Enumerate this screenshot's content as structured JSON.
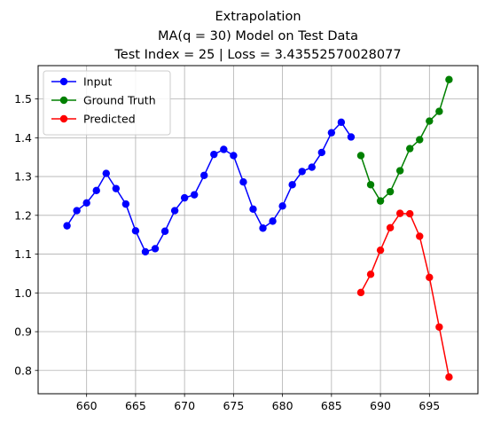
{
  "chart_data": {
    "type": "line",
    "title_lines": [
      "Extrapolation",
      "MA(q = 30) Model on Test Data",
      "Test Index = 25 | Loss = 3.43552570028077"
    ],
    "xlabel": "",
    "ylabel": "",
    "xlim": [
      655.05,
      699.95
    ],
    "ylim": [
      0.74,
      1.586
    ],
    "xticks": [
      660,
      665,
      670,
      675,
      680,
      685,
      690,
      695
    ],
    "yticks": [
      0.8,
      0.9,
      1.0,
      1.1,
      1.2,
      1.3,
      1.4,
      1.5
    ],
    "grid": true,
    "legend_position": "top-left",
    "series": [
      {
        "name": "Input",
        "color": "#0000ff",
        "x": [
          658,
          659,
          660,
          661,
          662,
          663,
          664,
          665,
          666,
          667,
          668,
          669,
          670,
          671,
          672,
          673,
          674,
          675,
          676,
          677,
          678,
          679,
          680,
          681,
          682,
          683,
          684,
          685,
          686,
          687
        ],
        "y": [
          1.173,
          1.212,
          1.232,
          1.264,
          1.308,
          1.269,
          1.229,
          1.16,
          1.106,
          1.114,
          1.159,
          1.212,
          1.245,
          1.253,
          1.303,
          1.357,
          1.37,
          1.354,
          1.286,
          1.216,
          1.167,
          1.185,
          1.224,
          1.279,
          1.313,
          1.324,
          1.362,
          1.413,
          1.44,
          1.402
        ]
      },
      {
        "name": "Ground Truth",
        "color": "#008000",
        "x": [
          688,
          689,
          690,
          691,
          692,
          693,
          694,
          695,
          696,
          697
        ],
        "y": [
          1.354,
          1.279,
          1.237,
          1.261,
          1.315,
          1.372,
          1.395,
          1.443,
          1.468,
          1.55
        ]
      },
      {
        "name": "Predicted",
        "color": "#ff0000",
        "x": [
          688,
          689,
          690,
          691,
          692,
          693,
          694,
          695,
          696,
          697
        ],
        "y": [
          1.001,
          1.048,
          1.11,
          1.168,
          1.205,
          1.204,
          1.146,
          1.04,
          0.912,
          0.783
        ]
      }
    ]
  }
}
